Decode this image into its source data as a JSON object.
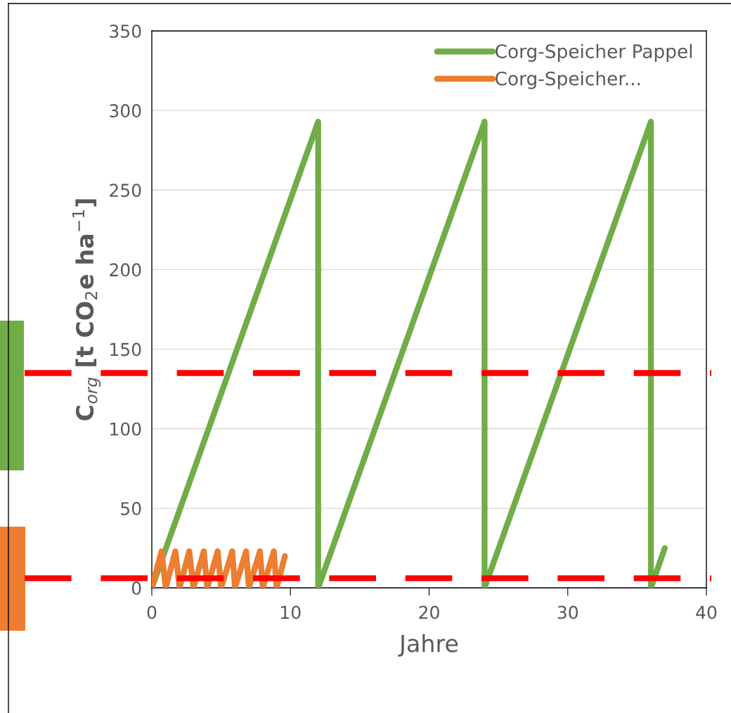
{
  "chart_data": {
    "type": "line",
    "xlabel": "Jahre",
    "ylabel": "C$_{org}$ [t CO$_{2}$e ha$^{−1}$]",
    "xlim": [
      0,
      40
    ],
    "xticks": [
      0,
      10,
      20,
      30,
      40
    ],
    "ylim": [
      0,
      350
    ],
    "yticks": [
      0,
      50,
      100,
      150,
      200,
      250,
      300,
      350
    ],
    "grid": "y",
    "legend": "top right",
    "marker": "none",
    "line_style": "solid",
    "series": [
      {
        "name": "Corg-Speicher Pappel",
        "color": "#70ad47",
        "x": [
          0,
          12,
          12,
          24,
          24,
          36,
          36,
          37
        ],
        "values": [
          0,
          293,
          0,
          293,
          0,
          293,
          0,
          25
        ]
      },
      {
        "name": "Corg-Speicher...",
        "color": "#ed7d31",
        "x": [
          0,
          0.7,
          1,
          1.7,
          2,
          2.7,
          3,
          3.75,
          4,
          4.75,
          5,
          5.8,
          6,
          6.8,
          7,
          7.8,
          8,
          8.8,
          9,
          9.6
        ],
        "values": [
          0,
          23,
          0,
          23,
          0,
          23,
          0,
          23,
          0,
          23,
          0,
          23,
          0,
          23,
          0,
          23,
          0,
          23,
          0,
          20
        ]
      }
    ],
    "ref_lines": [
      {
        "axis": "y",
        "value": 135,
        "color": "#ff0000",
        "line_style": "dashed"
      },
      {
        "axis": "y",
        "value": 6,
        "color": "#ff0000",
        "line_style": "dashed"
      }
    ]
  }
}
